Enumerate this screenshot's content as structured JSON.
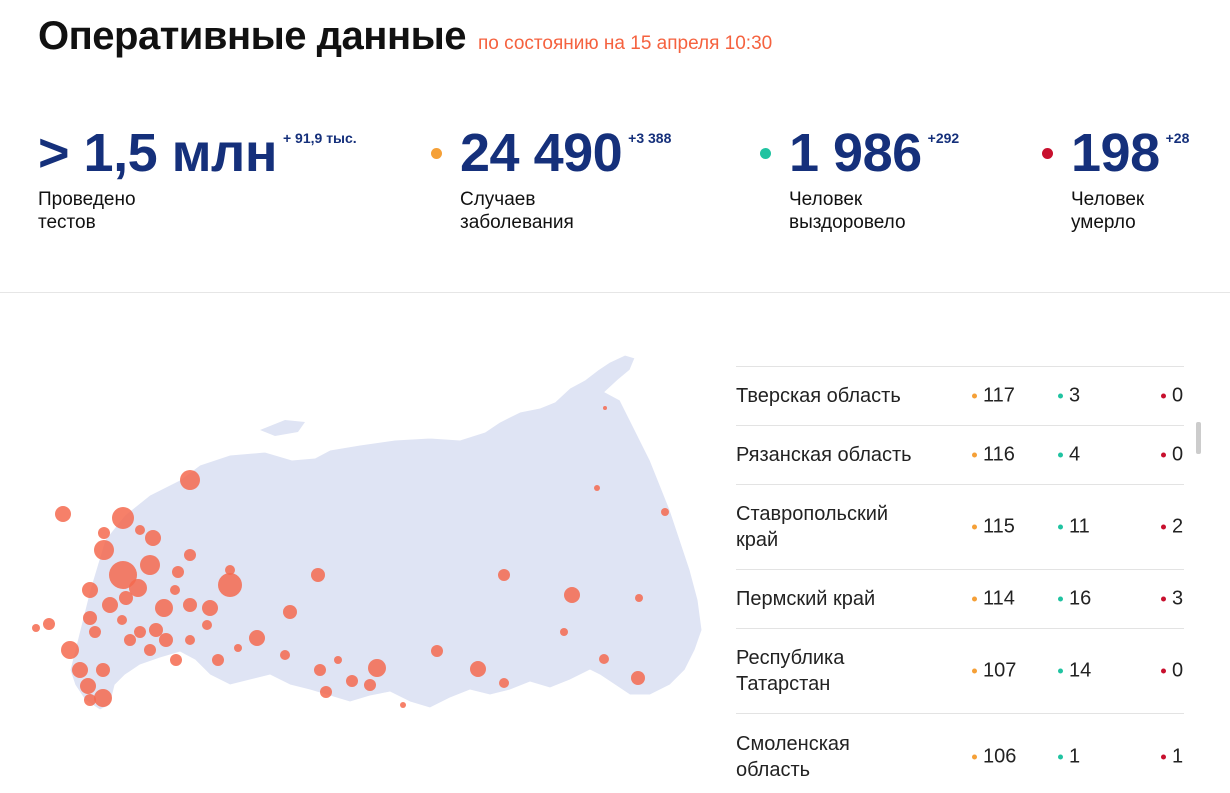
{
  "header": {
    "title": "Оперативные данные",
    "subtitle": "по состоянию на 15 апреля 10:30"
  },
  "stats": [
    {
      "value": "> 1,5 млн",
      "delta": "+ 91,9 тыс.",
      "label1": "Проведено",
      "label2": "тестов",
      "dot": null
    },
    {
      "value": "24 490",
      "delta": "+3 388",
      "label1": "Случаев",
      "label2": "заболевания",
      "dot": "#f5a037"
    },
    {
      "value": "1 986",
      "delta": "+292",
      "label1": "Человек",
      "label2": "выздоровело",
      "dot": "#20c3a1"
    },
    {
      "value": "198",
      "delta": "+28",
      "label1": "Человек",
      "label2": "умерло",
      "dot": "#c8102e"
    }
  ],
  "colors": {
    "accent": "#f5623f",
    "number": "#15307b",
    "cases": "#f5a037",
    "recovered": "#20c3a1",
    "deaths": "#c8102e",
    "map_land": "#dfe4f4",
    "map_bubble": "#f56a4f"
  },
  "table": {
    "rows": [
      {
        "region_line1": "Тверская область",
        "region_line2": "",
        "cases": "117",
        "recovered": "3",
        "deaths": "0"
      },
      {
        "region_line1": "Рязанская область",
        "region_line2": "",
        "cases": "116",
        "recovered": "4",
        "deaths": "0"
      },
      {
        "region_line1": "Ставропольский",
        "region_line2": "край",
        "cases": "115",
        "recovered": "11",
        "deaths": "2"
      },
      {
        "region_line1": "Пермский край",
        "region_line2": "",
        "cases": "114",
        "recovered": "16",
        "deaths": "3"
      },
      {
        "region_line1": "Республика",
        "region_line2": "Татарстан",
        "cases": "107",
        "recovered": "14",
        "deaths": "0"
      },
      {
        "region_line1": "Смоленская",
        "region_line2": "область",
        "cases": "106",
        "recovered": "1",
        "deaths": "1"
      }
    ]
  }
}
